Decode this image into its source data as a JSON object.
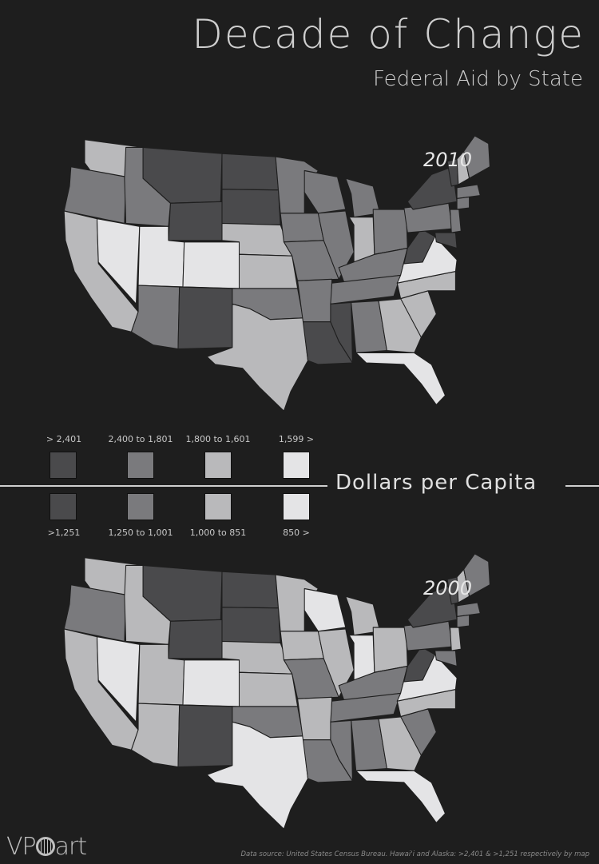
{
  "title": "Decade of Change",
  "subtitle": "Federal Aid by State",
  "center_label": "Dollars per Capita",
  "colors": {
    "level1": "#4a4a4c",
    "level2": "#7a7a7d",
    "level3": "#b9b9bb",
    "level4": "#e4e4e6",
    "background": "#1e1e1e"
  },
  "maps": [
    {
      "year": "2010",
      "legend": [
        "> 2,401",
        "2,400 to 1,801",
        "1,800 to 1,601",
        "1,599 >"
      ],
      "states": {
        "WA": 3,
        "OR": 2,
        "CA": 3,
        "NV": 4,
        "ID": 2,
        "MT": 1,
        "WY": 1,
        "UT": 4,
        "AZ": 2,
        "CO": 4,
        "NM": 1,
        "ND": 1,
        "SD": 1,
        "NE": 3,
        "KS": 3,
        "OK": 2,
        "TX": 3,
        "MN": 2,
        "IA": 2,
        "MO": 2,
        "AR": 2,
        "LA": 1,
        "WI": 2,
        "IL": 2,
        "MI": 2,
        "IN": 3,
        "OH": 2,
        "KY": 2,
        "TN": 2,
        "MS": 1,
        "AL": 2,
        "GA": 3,
        "FL": 4,
        "SC": 3,
        "NC": 3,
        "VA": 4,
        "WV": 1,
        "PA": 2,
        "NY": 1,
        "VT": 1,
        "NH": 3,
        "ME": 2,
        "MA": 2,
        "CT": 2,
        "NJ": 2,
        "MD": 1
      }
    },
    {
      "year": "2000",
      "legend": [
        ">1,251",
        "1,250 to 1,001",
        "1,000 to 851",
        "850 >"
      ],
      "states": {
        "WA": 3,
        "OR": 2,
        "CA": 3,
        "NV": 4,
        "ID": 3,
        "MT": 1,
        "WY": 1,
        "UT": 3,
        "AZ": 3,
        "CO": 4,
        "NM": 1,
        "ND": 1,
        "SD": 1,
        "NE": 3,
        "KS": 3,
        "OK": 2,
        "TX": 4,
        "MN": 3,
        "IA": 3,
        "MO": 2,
        "AR": 3,
        "LA": 2,
        "WI": 4,
        "IL": 3,
        "MI": 3,
        "IN": 4,
        "OH": 3,
        "KY": 2,
        "TN": 2,
        "MS": 2,
        "AL": 2,
        "GA": 3,
        "FL": 4,
        "SC": 2,
        "NC": 3,
        "VA": 4,
        "WV": 1,
        "PA": 2,
        "NY": 1,
        "VT": 1,
        "NH": 3,
        "ME": 2,
        "MA": 2,
        "CT": 2,
        "NJ": 3,
        "MD": 2
      }
    }
  ],
  "logo": "VP art",
  "source": "Data source: United States Census Bureau. Hawai'i and Alaska: >2,401 & >1,251 respectively by map"
}
